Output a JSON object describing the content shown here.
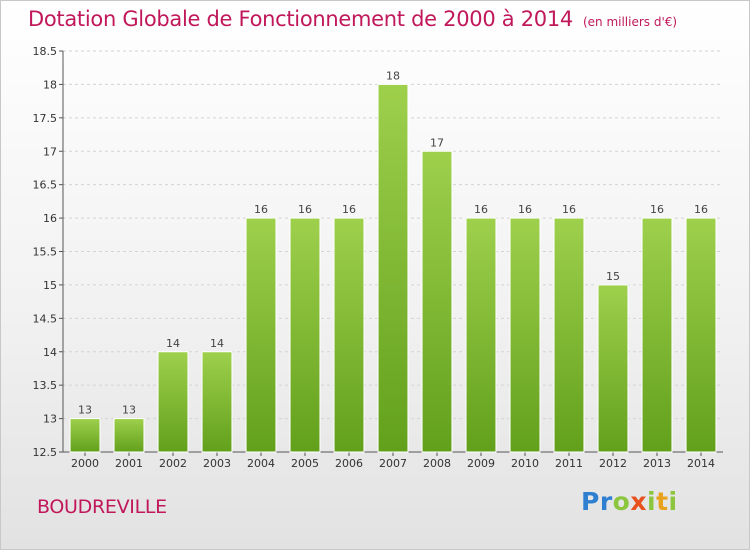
{
  "title": "Dotation Globale de Fonctionnement de 2000 à 2014",
  "unit_note": "(en milliers d'€)",
  "commune": "BOUDREVILLE",
  "logo": {
    "letters": [
      {
        "ch": "P",
        "color": "#2f7fd0"
      },
      {
        "ch": "r",
        "color": "#2f7fd0"
      },
      {
        "ch": "o",
        "color": "#8cc63e"
      },
      {
        "ch": "x",
        "color": "#e8501e"
      },
      {
        "ch": "i",
        "color": "#8cc63e"
      },
      {
        "ch": "t",
        "color": "#e8a21e"
      },
      {
        "ch": "i",
        "color": "#8cc63e"
      }
    ]
  },
  "chart_data": {
    "type": "bar",
    "title": "Dotation Globale de Fonctionnement de 2000 à 2014",
    "ylabel": "(en milliers d'€)",
    "xlabel": "",
    "categories": [
      "2000",
      "2001",
      "2002",
      "2003",
      "2004",
      "2005",
      "2006",
      "2007",
      "2008",
      "2009",
      "2010",
      "2011",
      "2012",
      "2013",
      "2014"
    ],
    "values": [
      13,
      13,
      14,
      14,
      16,
      16,
      16,
      18,
      17,
      16,
      16,
      16,
      15,
      16,
      16
    ],
    "ylim": [
      12.5,
      18.5
    ],
    "yticks": [
      "12.5",
      "13",
      "13.5",
      "14",
      "14.5",
      "15",
      "15.5",
      "16",
      "16.5",
      "17",
      "17.5",
      "18",
      "18.5"
    ],
    "grid": true,
    "bar_color": "#7cb82f"
  }
}
